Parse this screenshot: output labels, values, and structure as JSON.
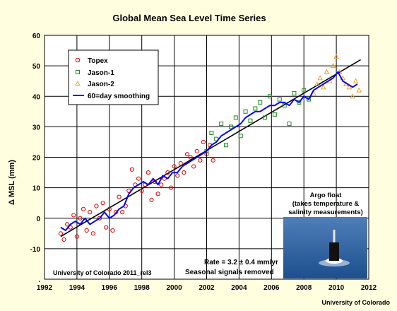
{
  "colors": {
    "background": "#ffffe0",
    "topex": "#e00000",
    "jason1": "#1a8a1a",
    "jason2": "#f0a020",
    "smoothing": "#0000ff",
    "trend": "#000000"
  },
  "chart_data": {
    "type": "scatter",
    "title": "Global Mean Sea Level Time Series",
    "xlabel": "",
    "ylabel": "Δ MSL (mm)",
    "xlim": [
      1992,
      2012
    ],
    "ylim": [
      -20,
      60
    ],
    "x_ticks": [
      1992,
      1994,
      1996,
      1998,
      2000,
      2002,
      2004,
      2006,
      2008,
      2010,
      2012
    ],
    "y_ticks": [
      -20,
      -10,
      0,
      10,
      20,
      30,
      40,
      50,
      60
    ],
    "y_tick_labels": [
      ".",
      "-10",
      "0",
      "10",
      "20",
      "30",
      "40",
      "50",
      "60"
    ],
    "grid": true,
    "legend_position": "top-left",
    "series": [
      {
        "name": "Topex",
        "marker": "circle",
        "x": [
          1993.0,
          1993.2,
          1993.4,
          1993.6,
          1993.8,
          1994.0,
          1994.2,
          1994.4,
          1994.6,
          1994.8,
          1995.0,
          1995.2,
          1995.4,
          1995.6,
          1995.8,
          1996.0,
          1996.2,
          1996.4,
          1996.6,
          1996.8,
          1997.0,
          1997.2,
          1997.4,
          1997.6,
          1997.8,
          1998.0,
          1998.2,
          1998.4,
          1998.6,
          1998.8,
          1999.0,
          1999.2,
          1999.4,
          1999.6,
          1999.8,
          2000.0,
          2000.2,
          2000.4,
          2000.6,
          2000.8,
          2001.0,
          2001.2,
          2001.4,
          2001.6,
          2001.8,
          2002.0,
          2002.2,
          2002.4
        ],
        "y": [
          -5,
          -7,
          -2,
          -3,
          1,
          -6,
          0,
          3,
          -4,
          2,
          -5,
          4,
          0,
          5,
          -3,
          3,
          -4,
          2,
          7,
          2,
          4,
          9,
          16,
          11,
          13,
          9,
          11,
          15,
          6,
          12,
          8,
          11,
          13,
          15,
          10,
          17,
          14,
          18,
          15,
          21,
          20,
          17,
          22,
          19,
          25,
          21,
          24,
          19
        ]
      },
      {
        "name": "Jason-1",
        "marker": "square",
        "x": [
          2002.0,
          2002.3,
          2002.6,
          2002.9,
          2003.2,
          2003.5,
          2003.8,
          2004.1,
          2004.4,
          2004.7,
          2005.0,
          2005.3,
          2005.6,
          2005.9,
          2006.2,
          2006.5,
          2006.8,
          2007.1,
          2007.4,
          2007.7,
          2008.0,
          2008.3
        ],
        "y": [
          22,
          28,
          26,
          31,
          24,
          30,
          33,
          27,
          35,
          32,
          36,
          38,
          33,
          40,
          34,
          39,
          37,
          31,
          41,
          38,
          42,
          39
        ]
      },
      {
        "name": "Jason-2",
        "marker": "triangle",
        "x": [
          2008.6,
          2008.8,
          2009.0,
          2009.2,
          2009.4,
          2009.6,
          2009.8,
          2010.0,
          2010.2,
          2010.4,
          2010.6,
          2010.8,
          2011.0,
          2011.2,
          2011.4
        ],
        "y": [
          41,
          44,
          46,
          43,
          48,
          45,
          50,
          53,
          48,
          46,
          44,
          43,
          40,
          45,
          42
        ]
      },
      {
        "name": "60=day smoothing",
        "marker": "line",
        "x": [
          1993.0,
          1993.3,
          1993.6,
          1993.9,
          1994.2,
          1994.5,
          1994.8,
          1995.1,
          1995.4,
          1995.7,
          1996.0,
          1996.3,
          1996.6,
          1996.9,
          1997.2,
          1997.5,
          1997.8,
          1998.1,
          1998.4,
          1998.7,
          1999.0,
          1999.3,
          1999.6,
          1999.9,
          2000.2,
          2000.5,
          2000.8,
          2001.1,
          2001.4,
          2001.7,
          2002.0,
          2002.3,
          2002.6,
          2002.9,
          2003.2,
          2003.5,
          2003.8,
          2004.1,
          2004.4,
          2004.7,
          2005.0,
          2005.3,
          2005.6,
          2005.9,
          2006.2,
          2006.5,
          2006.8,
          2007.1,
          2007.4,
          2007.7,
          2008.0,
          2008.3,
          2008.6,
          2008.9,
          2009.2,
          2009.5,
          2009.8,
          2010.1,
          2010.4,
          2010.7,
          2011.0,
          2011.3
        ],
        "y": [
          -3,
          -4,
          -2,
          -1,
          -2,
          0,
          -2,
          -1,
          0,
          2,
          0,
          1,
          3,
          4,
          8,
          10,
          11,
          12,
          11,
          13,
          11,
          14,
          13,
          15,
          15,
          17,
          18,
          19,
          20,
          21,
          22,
          24,
          25,
          27,
          28,
          29,
          30,
          31,
          33,
          34,
          35,
          35,
          36,
          37,
          37,
          38,
          38,
          37,
          39,
          38,
          40,
          39,
          42,
          43,
          44,
          45,
          46,
          48,
          45,
          44,
          43,
          44
        ]
      },
      {
        "name": "trend",
        "marker": "none",
        "x": [
          1993.0,
          2011.5
        ],
        "y": [
          -6,
          52
        ]
      }
    ],
    "annotations": {
      "rate": "Rate = 3.2 ± 0.4 mm/yr",
      "seasonal": "Seasonal signals removed",
      "source": "University of Colorado 2011_rel3",
      "photo_caption_1": "Argo float",
      "photo_caption_2": "(takes temperature &",
      "photo_caption_3": "salinity measurements)",
      "credit": "University of Colorado"
    }
  }
}
